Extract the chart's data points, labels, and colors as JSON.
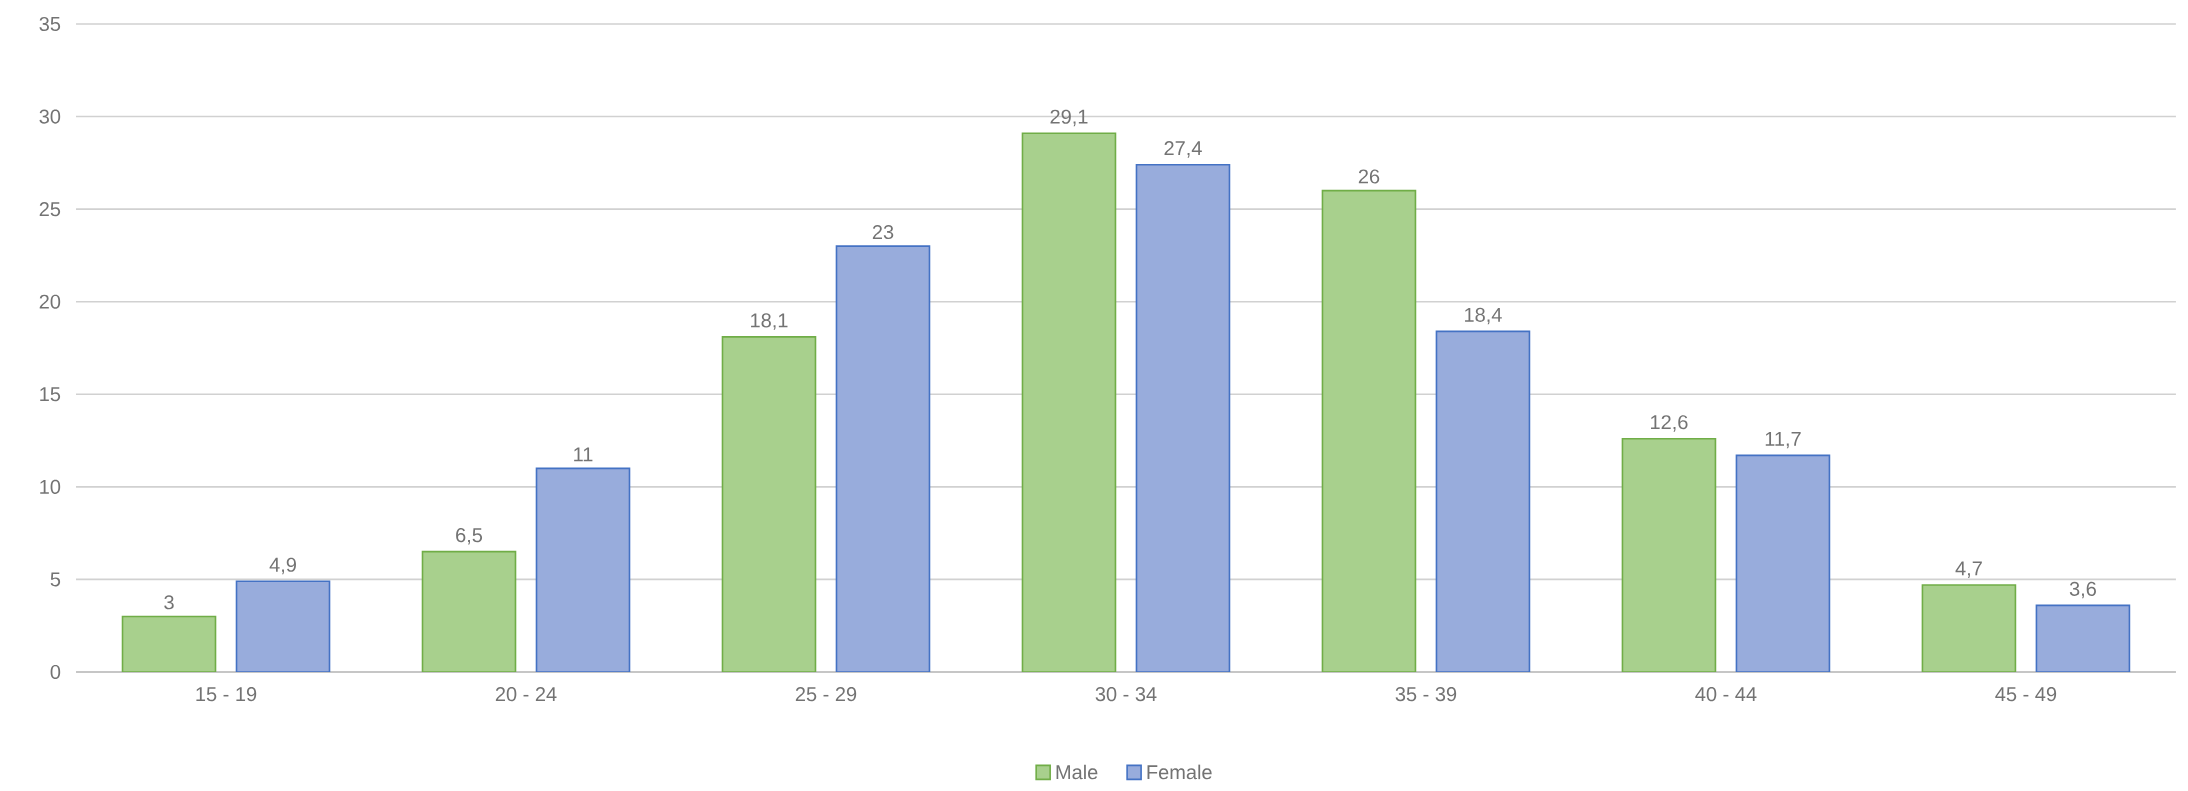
{
  "chart_data": {
    "type": "bar",
    "categories": [
      "15 - 19",
      "20 - 24",
      "25 - 29",
      "30 - 34",
      "35 - 39",
      "40 - 44",
      "45 - 49"
    ],
    "series": [
      {
        "name": "Male",
        "color": "#a8d08d",
        "values": [
          3,
          6.5,
          18.1,
          29.1,
          26,
          12.6,
          4.7
        ],
        "value_labels": [
          "3",
          "6,5",
          "18,1",
          "29,1",
          "26",
          "12,6",
          "4,7"
        ]
      },
      {
        "name": "Female",
        "color": "#98acdc",
        "values": [
          4.9,
          11,
          23,
          27.4,
          18.4,
          11.7,
          3.6
        ],
        "value_labels": [
          "4,9",
          "11",
          "23",
          "27,4",
          "18,4",
          "11,7",
          "3,6"
        ]
      }
    ],
    "ylim": [
      0,
      35
    ],
    "yticks": [
      0,
      5,
      10,
      15,
      20,
      25,
      30,
      35
    ],
    "grid": "y",
    "legend": "bottom"
  }
}
